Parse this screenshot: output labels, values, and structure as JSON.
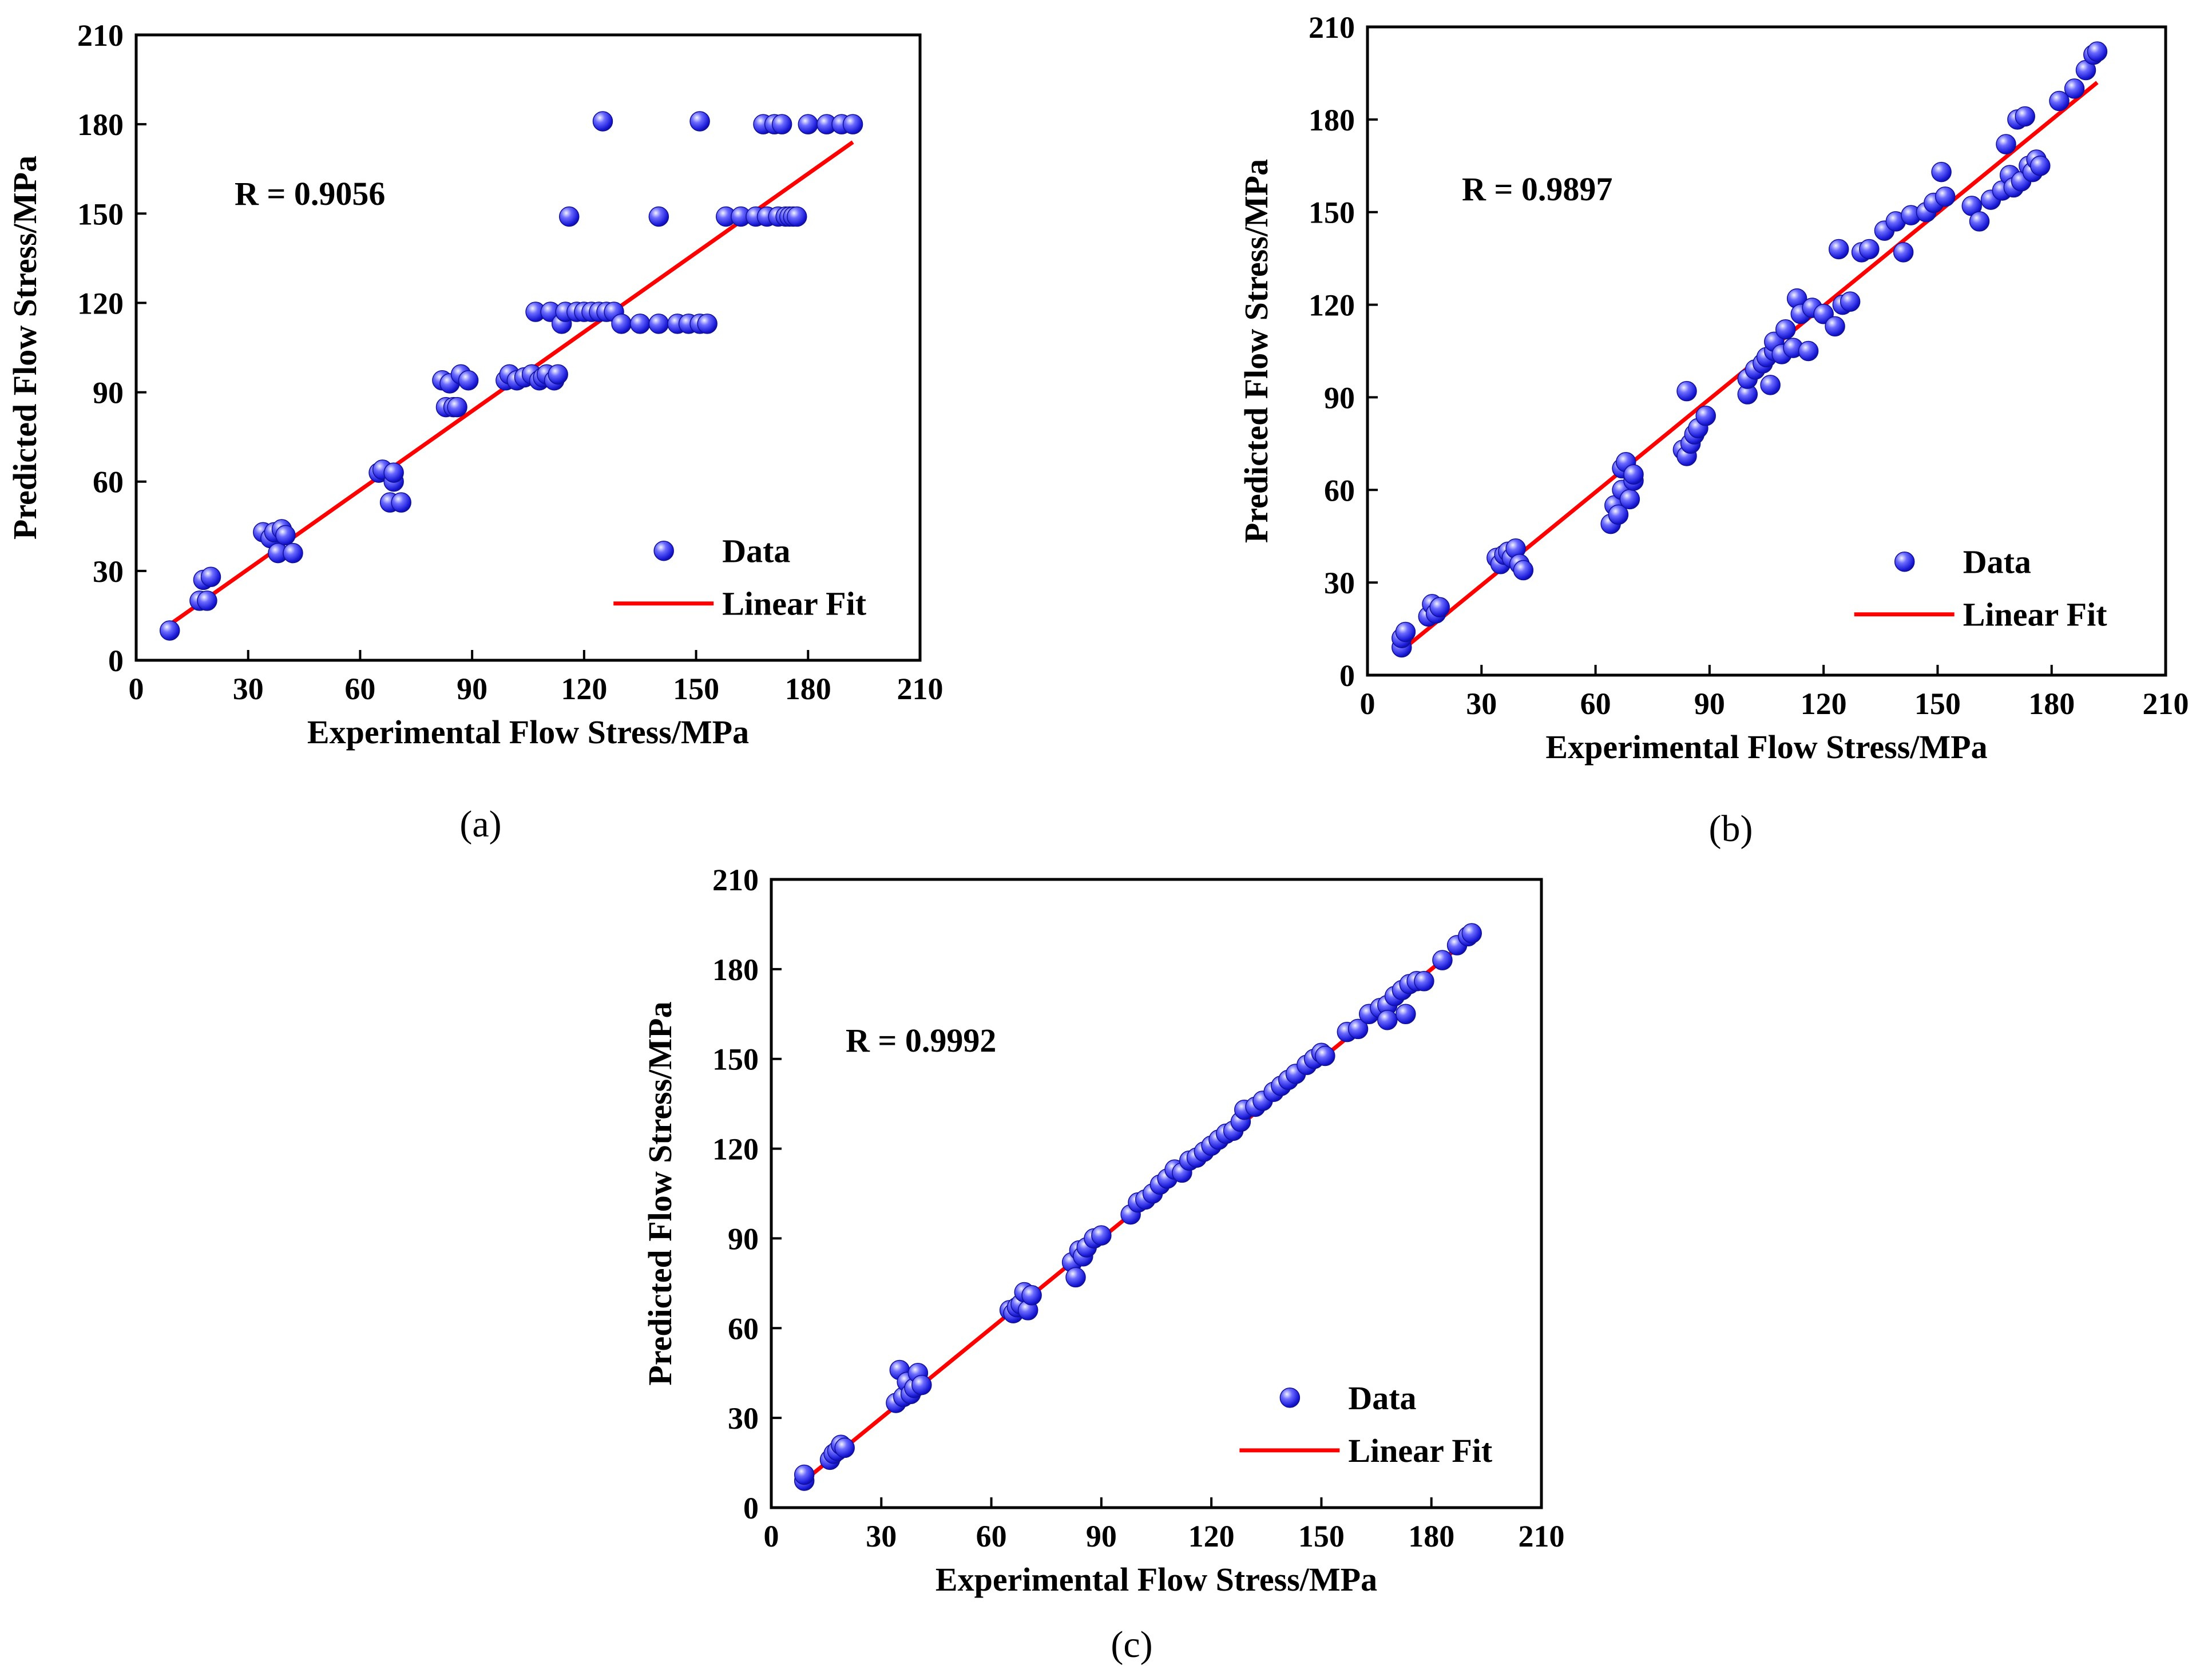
{
  "chart_data": [
    {
      "id": "a",
      "type": "scatter",
      "caption": "(a)",
      "xlabel": "Experimental Flow Stress/MPa",
      "ylabel": "Predicted Flow Stress/MPa",
      "xlim": [
        0,
        210
      ],
      "ylim": [
        0,
        210
      ],
      "xticks": [
        "0",
        "30",
        "60",
        "90",
        "120",
        "150",
        "180",
        "210"
      ],
      "yticks": [
        "0",
        "30",
        "60",
        "90",
        "120",
        "150",
        "180",
        "210"
      ],
      "annotation": "R = 0.9056",
      "legend": {
        "position": "bottom-right",
        "entries": [
          "Data",
          "Linear Fit"
        ]
      },
      "colors": {
        "points": "#2a2ae0",
        "fit": "#ff0000"
      },
      "series": [
        {
          "name": "Data",
          "kind": "scatter",
          "points": [
            [
              9,
              10
            ],
            [
              17,
              20
            ],
            [
              18,
              27
            ],
            [
              19,
              20
            ],
            [
              20,
              28
            ],
            [
              34,
              43
            ],
            [
              36,
              41
            ],
            [
              37,
              43
            ],
            [
              38,
              36
            ],
            [
              39,
              44
            ],
            [
              40,
              42
            ],
            [
              42,
              36
            ],
            [
              65,
              63
            ],
            [
              66,
              64
            ],
            [
              68,
              53
            ],
            [
              69,
              60
            ],
            [
              69,
              63
            ],
            [
              71,
              53
            ],
            [
              82,
              94
            ],
            [
              83,
              85
            ],
            [
              84,
              93
            ],
            [
              85,
              85
            ],
            [
              86,
              85
            ],
            [
              87,
              96
            ],
            [
              89,
              94
            ],
            [
              99,
              94
            ],
            [
              100,
              96
            ],
            [
              102,
              94
            ],
            [
              104,
              95
            ],
            [
              106,
              96
            ],
            [
              107,
              117
            ],
            [
              108,
              94
            ],
            [
              109,
              95
            ],
            [
              110,
              96
            ],
            [
              111,
              117
            ],
            [
              112,
              94
            ],
            [
              113,
              96
            ],
            [
              114,
              113
            ],
            [
              115,
              117
            ],
            [
              116,
              149
            ],
            [
              118,
              117
            ],
            [
              120,
              117
            ],
            [
              122,
              117
            ],
            [
              124,
              117
            ],
            [
              125,
              181
            ],
            [
              126,
              117
            ],
            [
              128,
              117
            ],
            [
              130,
              113
            ],
            [
              135,
              113
            ],
            [
              140,
              149
            ],
            [
              140,
              113
            ],
            [
              145,
              113
            ],
            [
              148,
              113
            ],
            [
              151,
              113
            ],
            [
              151,
              181
            ],
            [
              153,
              113
            ],
            [
              158,
              149
            ],
            [
              162,
              149
            ],
            [
              166,
              149
            ],
            [
              168,
              180
            ],
            [
              169,
              149
            ],
            [
              171,
              180
            ],
            [
              172,
              149
            ],
            [
              173,
              180
            ],
            [
              174,
              149
            ],
            [
              175,
              149
            ],
            [
              176,
              149
            ],
            [
              177,
              149
            ],
            [
              180,
              180
            ],
            [
              185,
              180
            ],
            [
              189,
              180
            ],
            [
              192,
              180
            ]
          ]
        },
        {
          "name": "Linear Fit",
          "kind": "line",
          "points": [
            [
              9,
              12
            ],
            [
              192,
              174
            ]
          ]
        }
      ]
    },
    {
      "id": "b",
      "type": "scatter",
      "caption": "(b)",
      "xlabel": "Experimental Flow Stress/MPa",
      "ylabel": "Predicted Flow Stress/MPa",
      "xlim": [
        0,
        210
      ],
      "ylim": [
        0,
        210
      ],
      "xticks": [
        "0",
        "30",
        "60",
        "90",
        "120",
        "150",
        "180",
        "210"
      ],
      "yticks": [
        "0",
        "30",
        "60",
        "90",
        "120",
        "150",
        "180",
        "210"
      ],
      "annotation": "R = 0.9897",
      "legend": {
        "position": "bottom-right",
        "entries": [
          "Data",
          "Linear Fit"
        ]
      },
      "colors": {
        "points": "#2a2ae0",
        "fit": "#ff0000"
      },
      "series": [
        {
          "name": "Data",
          "kind": "scatter",
          "points": [
            [
              9,
              9
            ],
            [
              9,
              12
            ],
            [
              10,
              14
            ],
            [
              16,
              19
            ],
            [
              17,
              23
            ],
            [
              18,
              20
            ],
            [
              19,
              22
            ],
            [
              34,
              38
            ],
            [
              35,
              36
            ],
            [
              36,
              39
            ],
            [
              37,
              40
            ],
            [
              38,
              38
            ],
            [
              39,
              41
            ],
            [
              40,
              36
            ],
            [
              41,
              34
            ],
            [
              64,
              49
            ],
            [
              65,
              55
            ],
            [
              66,
              52
            ],
            [
              67,
              60
            ],
            [
              67,
              67
            ],
            [
              68,
              69
            ],
            [
              69,
              57
            ],
            [
              70,
              63
            ],
            [
              70,
              65
            ],
            [
              83,
              73
            ],
            [
              84,
              71
            ],
            [
              84,
              92
            ],
            [
              85,
              75
            ],
            [
              86,
              78
            ],
            [
              87,
              80
            ],
            [
              89,
              84
            ],
            [
              100,
              91
            ],
            [
              100,
              96
            ],
            [
              102,
              99
            ],
            [
              104,
              101
            ],
            [
              105,
              103
            ],
            [
              106,
              94
            ],
            [
              107,
              105
            ],
            [
              107,
              108
            ],
            [
              109,
              104
            ],
            [
              110,
              112
            ],
            [
              112,
              106
            ],
            [
              113,
              122
            ],
            [
              114,
              117
            ],
            [
              116,
              105
            ],
            [
              117,
              119
            ],
            [
              120,
              117
            ],
            [
              123,
              113
            ],
            [
              124,
              138
            ],
            [
              125,
              120
            ],
            [
              127,
              121
            ],
            [
              130,
              137
            ],
            [
              132,
              138
            ],
            [
              136,
              144
            ],
            [
              139,
              147
            ],
            [
              141,
              137
            ],
            [
              143,
              149
            ],
            [
              147,
              150
            ],
            [
              149,
              153
            ],
            [
              151,
              163
            ],
            [
              152,
              155
            ],
            [
              159,
              152
            ],
            [
              161,
              147
            ],
            [
              164,
              154
            ],
            [
              167,
              157
            ],
            [
              168,
              172
            ],
            [
              169,
              162
            ],
            [
              170,
              158
            ],
            [
              171,
              180
            ],
            [
              172,
              160
            ],
            [
              173,
              181
            ],
            [
              174,
              165
            ],
            [
              175,
              163
            ],
            [
              176,
              167
            ],
            [
              177,
              165
            ],
            [
              182,
              186
            ],
            [
              186,
              190
            ],
            [
              189,
              196
            ],
            [
              191,
              201
            ],
            [
              192,
              202
            ]
          ]
        },
        {
          "name": "Linear Fit",
          "kind": "line",
          "points": [
            [
              9,
              8
            ],
            [
              192,
              192
            ]
          ]
        }
      ]
    },
    {
      "id": "c",
      "type": "scatter",
      "caption": "(c)",
      "xlabel": "Experimental Flow Stress/MPa",
      "ylabel": "Predicted Flow Stress/MPa",
      "xlim": [
        0,
        210
      ],
      "ylim": [
        0,
        210
      ],
      "xticks": [
        "0",
        "30",
        "60",
        "90",
        "120",
        "150",
        "180",
        "210"
      ],
      "yticks": [
        "0",
        "30",
        "60",
        "90",
        "120",
        "150",
        "180",
        "210"
      ],
      "annotation": "R = 0.9992",
      "legend": {
        "position": "bottom-right",
        "entries": [
          "Data",
          "Linear Fit"
        ]
      },
      "colors": {
        "points": "#2a2ae0",
        "fit": "#ff0000"
      },
      "series": [
        {
          "name": "Data",
          "kind": "scatter",
          "points": [
            [
              9,
              9
            ],
            [
              9,
              11
            ],
            [
              16,
              16
            ],
            [
              17,
              18
            ],
            [
              18,
              19
            ],
            [
              19,
              21
            ],
            [
              20,
              20
            ],
            [
              34,
              35
            ],
            [
              35,
              46
            ],
            [
              36,
              37
            ],
            [
              37,
              42
            ],
            [
              38,
              38
            ],
            [
              39,
              40
            ],
            [
              40,
              45
            ],
            [
              41,
              41
            ],
            [
              65,
              66
            ],
            [
              66,
              65
            ],
            [
              67,
              67
            ],
            [
              68,
              68
            ],
            [
              69,
              72
            ],
            [
              70,
              66
            ],
            [
              71,
              71
            ],
            [
              82,
              82
            ],
            [
              83,
              77
            ],
            [
              84,
              86
            ],
            [
              85,
              84
            ],
            [
              86,
              87
            ],
            [
              88,
              90
            ],
            [
              90,
              91
            ],
            [
              98,
              98
            ],
            [
              100,
              102
            ],
            [
              102,
              103
            ],
            [
              104,
              105
            ],
            [
              106,
              108
            ],
            [
              108,
              110
            ],
            [
              110,
              113
            ],
            [
              112,
              112
            ],
            [
              114,
              116
            ],
            [
              116,
              117
            ],
            [
              118,
              119
            ],
            [
              120,
              121
            ],
            [
              122,
              123
            ],
            [
              124,
              125
            ],
            [
              126,
              126
            ],
            [
              128,
              129
            ],
            [
              129,
              133
            ],
            [
              132,
              134
            ],
            [
              134,
              136
            ],
            [
              137,
              139
            ],
            [
              139,
              141
            ],
            [
              141,
              143
            ],
            [
              143,
              145
            ],
            [
              146,
              148
            ],
            [
              148,
              150
            ],
            [
              150,
              152
            ],
            [
              151,
              151
            ],
            [
              157,
              159
            ],
            [
              160,
              160
            ],
            [
              163,
              165
            ],
            [
              166,
              167
            ],
            [
              168,
              168
            ],
            [
              168,
              163
            ],
            [
              170,
              171
            ],
            [
              172,
              173
            ],
            [
              173,
              165
            ],
            [
              174,
              175
            ],
            [
              176,
              176
            ],
            [
              178,
              176
            ],
            [
              183,
              183
            ],
            [
              187,
              188
            ],
            [
              190,
              191
            ],
            [
              191,
              192
            ]
          ]
        },
        {
          "name": "Linear Fit",
          "kind": "line",
          "points": [
            [
              9,
              9
            ],
            [
              191,
              191
            ]
          ]
        }
      ]
    }
  ]
}
